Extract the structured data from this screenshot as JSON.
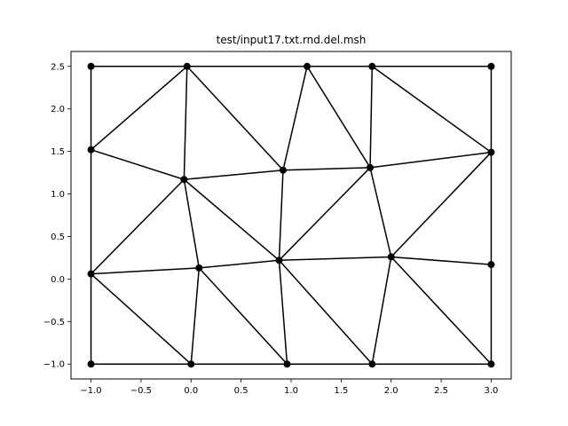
{
  "chart_data": {
    "type": "line",
    "title": "test/input17.txt.rnd.del.msh",
    "xlabel": "",
    "ylabel": "",
    "xlim": [
      -1.2,
      3.2
    ],
    "ylim": [
      -1.175,
      2.675
    ],
    "x_ticks": [
      -1.0,
      -0.5,
      0.0,
      0.5,
      1.0,
      1.5,
      2.0,
      2.5,
      3.0
    ],
    "x_tick_labels": [
      "−1.0",
      "−0.5",
      "0.0",
      "0.5",
      "1.0",
      "1.5",
      "2.0",
      "2.5",
      "3.0"
    ],
    "y_ticks": [
      -1.0,
      -0.5,
      0.0,
      0.5,
      1.0,
      1.5,
      2.0,
      2.5
    ],
    "y_tick_labels": [
      "−1.0",
      "−0.5",
      "0.0",
      "0.5",
      "1.0",
      "1.5",
      "2.0",
      "2.5"
    ],
    "grid": false,
    "line_color": "#000000",
    "marker": "circle",
    "nodes": [
      {
        "id": 0,
        "x": -1.0,
        "y": 2.5
      },
      {
        "id": 1,
        "x": -0.04,
        "y": 2.5
      },
      {
        "id": 2,
        "x": 1.16,
        "y": 2.5
      },
      {
        "id": 3,
        "x": 1.81,
        "y": 2.5
      },
      {
        "id": 4,
        "x": 3.0,
        "y": 2.5
      },
      {
        "id": 5,
        "x": -1.0,
        "y": 1.52
      },
      {
        "id": 6,
        "x": -0.07,
        "y": 1.17
      },
      {
        "id": 7,
        "x": 0.92,
        "y": 1.28
      },
      {
        "id": 8,
        "x": 1.79,
        "y": 1.31
      },
      {
        "id": 9,
        "x": 3.0,
        "y": 1.49
      },
      {
        "id": 10,
        "x": -1.0,
        "y": 0.06
      },
      {
        "id": 11,
        "x": 0.08,
        "y": 0.13
      },
      {
        "id": 12,
        "x": 0.88,
        "y": 0.22
      },
      {
        "id": 13,
        "x": 2.0,
        "y": 0.26
      },
      {
        "id": 14,
        "x": 3.0,
        "y": 0.17
      },
      {
        "id": 15,
        "x": -1.0,
        "y": -1.0
      },
      {
        "id": 16,
        "x": 0.0,
        "y": -1.0
      },
      {
        "id": 17,
        "x": 0.96,
        "y": -1.0
      },
      {
        "id": 18,
        "x": 1.81,
        "y": -1.0
      },
      {
        "id": 19,
        "x": 3.0,
        "y": -1.0
      }
    ],
    "edges": [
      [
        0,
        1
      ],
      [
        1,
        2
      ],
      [
        2,
        3
      ],
      [
        3,
        4
      ],
      [
        0,
        5
      ],
      [
        5,
        10
      ],
      [
        10,
        15
      ],
      [
        4,
        9
      ],
      [
        9,
        14
      ],
      [
        14,
        19
      ],
      [
        15,
        16
      ],
      [
        16,
        17
      ],
      [
        17,
        18
      ],
      [
        18,
        19
      ],
      [
        5,
        1
      ],
      [
        1,
        6
      ],
      [
        5,
        6
      ],
      [
        1,
        7
      ],
      [
        6,
        7
      ],
      [
        2,
        7
      ],
      [
        2,
        8
      ],
      [
        7,
        8
      ],
      [
        3,
        8
      ],
      [
        3,
        9
      ],
      [
        8,
        9
      ],
      [
        6,
        10
      ],
      [
        6,
        11
      ],
      [
        10,
        11
      ],
      [
        6,
        12
      ],
      [
        11,
        12
      ],
      [
        7,
        12
      ],
      [
        8,
        12
      ],
      [
        8,
        13
      ],
      [
        12,
        13
      ],
      [
        9,
        13
      ],
      [
        13,
        14
      ],
      [
        13,
        19
      ],
      [
        13,
        18
      ],
      [
        12,
        18
      ],
      [
        12,
        17
      ],
      [
        11,
        17
      ],
      [
        11,
        16
      ],
      [
        10,
        16
      ]
    ]
  }
}
